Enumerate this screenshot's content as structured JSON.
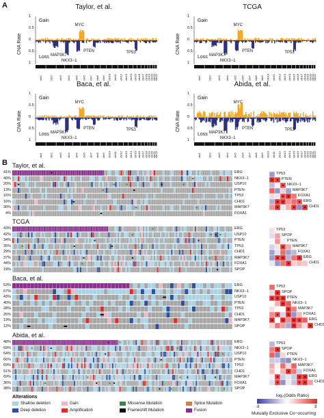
{
  "panelA": {
    "letter": "A",
    "ylabel": "CNA Rate",
    "gain": "Gain",
    "loss": "Loss",
    "yticks": [
      "1",
      "0.5",
      "0",
      "0.5",
      "1"
    ],
    "chroms": [
      "chr1",
      "chr2",
      "chr3",
      "chr4",
      "chr5",
      "chr6",
      "chr7",
      "chr8",
      "chr9",
      "chr10",
      "chr11",
      "chr12",
      "chr13",
      "chr14",
      "chr15",
      "chr16",
      "chr17",
      "chr18",
      "chr19",
      "chr20",
      "chr21",
      "chr22"
    ],
    "plots": [
      {
        "title": "Taylor, et al.",
        "labels": [
          {
            "t": "MYC"
          },
          {
            "t": "MAP3K7"
          },
          {
            "t": "NKX3−1"
          },
          {
            "t": "PTEN"
          },
          {
            "t": "TP53"
          }
        ]
      },
      {
        "title": "TCGA",
        "labels": [
          {
            "t": "MYC"
          },
          {
            "t": "MAP3K7"
          },
          {
            "t": "NKX3−1"
          },
          {
            "t": "PTEN"
          },
          {
            "t": "TP53"
          }
        ]
      },
      {
        "title": "Baca, et al.",
        "labels": [
          {
            "t": "MYC"
          },
          {
            "t": "MAP3K7"
          },
          {
            "t": "NKX3−1"
          },
          {
            "t": "PTEN"
          },
          {
            "t": "TP53"
          }
        ]
      },
      {
        "title": "Abida, et al.",
        "labels": [
          {
            "t": "MYC"
          },
          {
            "t": "MAP3K7"
          },
          {
            "t": "NKX3−1"
          },
          {
            "t": "PTEN"
          },
          {
            "t": "TP53"
          }
        ]
      }
    ]
  },
  "panelB": {
    "letter": "B",
    "cohorts": [
      {
        "title": "Taylor, et al.",
        "rows": [
          {
            "pct": "41%",
            "gene": "ERG"
          },
          {
            "pct": "40%",
            "gene": "NKX3−1"
          },
          {
            "pct": "20%",
            "gene": "USP10"
          },
          {
            "pct": "13%",
            "gene": "PTEN"
          },
          {
            "pct": "16%",
            "gene": "TP53"
          },
          {
            "pct": "16%",
            "gene": "CHD1"
          },
          {
            "pct": "30%",
            "gene": "MAP3K7"
          },
          {
            "pct": "4%",
            "gene": "FOXA1"
          }
        ],
        "heat_genes_bottom": [
          "ERG",
          "FOXA1",
          "MAP3K7",
          "CHD1",
          "PTEN",
          "USP10",
          "TP53"
        ],
        "heat_genes_right": [
          "TP53",
          "PTEN",
          "NKX3−1",
          "MAP3K7",
          "FOXA1",
          "ERG",
          "CHD1"
        ]
      },
      {
        "title": "TCGA",
        "rows": [
          {
            "pct": "43%",
            "gene": "ERG"
          },
          {
            "pct": "42%",
            "gene": "USP10"
          },
          {
            "pct": "34%",
            "gene": "PTEN"
          },
          {
            "pct": "35%",
            "gene": "TP53"
          },
          {
            "pct": "29%",
            "gene": "CHD1"
          },
          {
            "pct": "37%",
            "gene": "MAP3K7"
          },
          {
            "pct": "44%",
            "gene": "FOXA1"
          },
          {
            "pct": "19%",
            "gene": "SPOP"
          }
        ],
        "heat_genes_bottom": [
          "ERG",
          "FOXA1",
          "MAP3K7",
          "CHD1",
          "SPOP",
          "PTEN",
          "TP53"
        ],
        "heat_genes_right": [
          "TP53",
          "SPOP",
          "PTEN",
          "MAP3K7",
          "FOXA1",
          "ERG",
          "CHD1"
        ]
      },
      {
        "title": "Baca, et al.",
        "rows": [
          {
            "pct": "53%",
            "gene": "ERG"
          },
          {
            "pct": "67%",
            "gene": "NKX3−1"
          },
          {
            "pct": "43%",
            "gene": "USP10"
          },
          {
            "pct": "40%",
            "gene": "PTEN"
          },
          {
            "pct": "28%",
            "gene": "TP53"
          },
          {
            "pct": "26%",
            "gene": "CHD1"
          },
          {
            "pct": "19%",
            "gene": "MAP3K7"
          },
          {
            "pct": "12%",
            "gene": "SPOP"
          }
        ],
        "heat_genes_bottom": [
          "ERG",
          "FOXA1",
          "MAP3K7",
          "NKX3−1",
          "SPOP",
          "PTEN",
          "TP53"
        ],
        "heat_genes_right": [
          "TP53",
          "SPOP",
          "PTEN",
          "NKX3−1",
          "MAP3K7",
          "FOXA1",
          "ERG",
          "CHD1"
        ]
      },
      {
        "title": "Abida, et al.",
        "rows": [
          {
            "pct": "48%",
            "gene": "ERG"
          },
          {
            "pct": "69%",
            "gene": "NKX3−1"
          },
          {
            "pct": "64%",
            "gene": "USP10"
          },
          {
            "pct": "66%",
            "gene": "PTEN"
          },
          {
            "pct": "69%",
            "gene": "TP53"
          },
          {
            "pct": "51%",
            "gene": "CHD1"
          },
          {
            "pct": "69%",
            "gene": "MAP3K7"
          },
          {
            "pct": "36%",
            "gene": "FOXA1"
          },
          {
            "pct": "38%",
            "gene": "SPOP"
          }
        ],
        "heat_genes_bottom": [
          "ERG",
          "FOXA1",
          "MAP3K7",
          "NKX3−1",
          "USP10",
          "PTEN",
          "TP53"
        ],
        "heat_genes_right": [
          "TP53",
          "SPOP",
          "PTEN",
          "NKX3−1",
          "MAP3K7",
          "FOXA1",
          "ERG",
          "CHD1"
        ]
      }
    ],
    "legend": {
      "title": "Alterations",
      "items": [
        {
          "label": "Shallow deletion",
          "color": "#a9d4e8"
        },
        {
          "label": "Deep deletion",
          "color": "#2f4fa0"
        },
        {
          "label": "Gain",
          "color": "#f4b6c2"
        },
        {
          "label": "Amplification",
          "color": "#e02b2b"
        },
        {
          "label": "Missense Mutation",
          "color": "#2e8b3a"
        },
        {
          "label": "Frameshift Mutation",
          "color": "#111111"
        },
        {
          "label": "Splice Mutation",
          "color": "#c8824a"
        },
        {
          "label": "Fusion",
          "color": "#8b2f8f"
        }
      ],
      "scale_title": "log₂(Odds Ratio)",
      "scale_min": "-3",
      "scale_max": "3",
      "scale_caption": "Mutually Exclusive Co−occurring"
    }
  },
  "colors": {
    "gain": "#f2a820",
    "loss": "#2c2f7a",
    "base": "#a6a6a6"
  }
}
